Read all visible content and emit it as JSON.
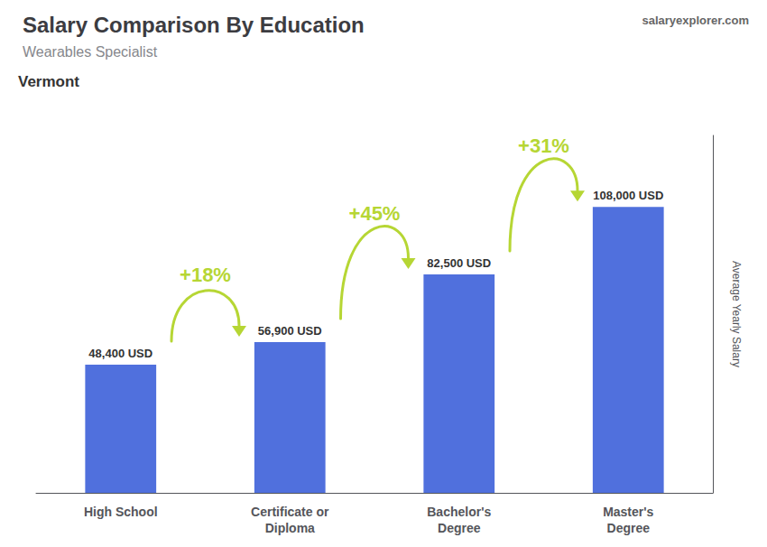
{
  "chart_data": {
    "type": "bar",
    "title": "Salary Comparison By Education",
    "subtitle": "Wearables Specialist",
    "ylabel": "Average Yearly Salary",
    "annotations": [
      {
        "text": "Vermont"
      },
      {
        "text": "salaryexplorer.com"
      },
      {
        "text": "+18%",
        "from": "High School",
        "to": "Certificate or\nDiploma"
      },
      {
        "text": "+45%",
        "from": "Certificate or\nDiploma",
        "to": "Bachelor's\nDegree"
      },
      {
        "text": "+31%",
        "from": "Bachelor's\nDegree",
        "to": "Master's\nDegree"
      }
    ],
    "categories": [
      "High School",
      "Certificate or\nDiploma",
      "Bachelor's\nDegree",
      "Master's\nDegree"
    ],
    "values": [
      48400,
      56900,
      82500,
      108000
    ],
    "value_labels": [
      "48,400 USD",
      "56,900 USD",
      "82,500 USD",
      "108,000 USD"
    ],
    "data_labels": true,
    "ylim": [
      0,
      135000
    ],
    "tick_labels": "x",
    "grid": false
  }
}
